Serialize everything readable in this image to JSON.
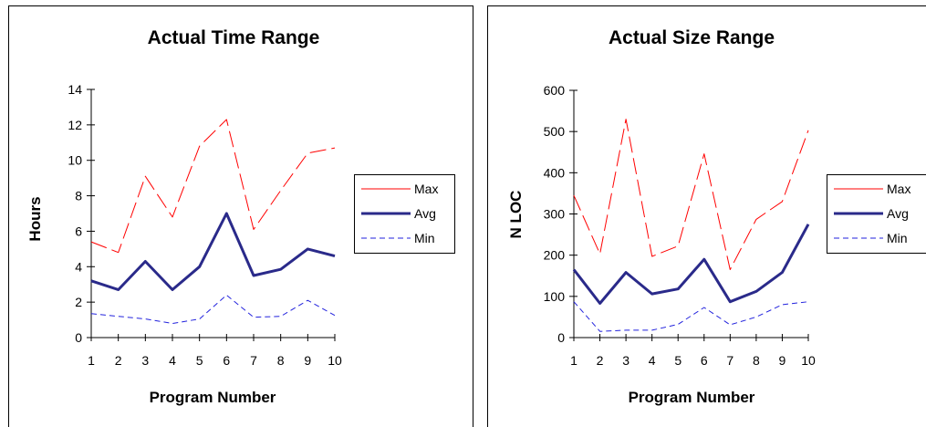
{
  "chart_data": [
    {
      "type": "line",
      "title": "Actual Time Range",
      "xlabel": "Program Number",
      "ylabel": "Hours",
      "x": [
        1,
        2,
        3,
        4,
        5,
        6,
        7,
        8,
        9,
        10
      ],
      "ylim": [
        0,
        14
      ],
      "yticks": [
        0,
        2,
        4,
        6,
        8,
        10,
        12,
        14
      ],
      "legend_position": "right",
      "series": [
        {
          "name": "Max",
          "color": "#ff0000",
          "style": "long-dash",
          "values": [
            5.4,
            4.8,
            9.1,
            6.8,
            10.8,
            12.3,
            6.1,
            8.3,
            10.4,
            10.7
          ]
        },
        {
          "name": "Avg",
          "color": "#2a2a8a",
          "style": "solid-thick",
          "values": [
            3.2,
            2.7,
            4.3,
            2.7,
            4.0,
            7.0,
            3.5,
            3.85,
            5.0,
            4.6
          ]
        },
        {
          "name": "Min",
          "color": "#2222dd",
          "style": "short-dash",
          "values": [
            1.35,
            1.2,
            1.05,
            0.8,
            1.05,
            2.4,
            1.15,
            1.2,
            2.1,
            1.25
          ]
        }
      ]
    },
    {
      "type": "line",
      "title": "Actual Size Range",
      "xlabel": "Program Number",
      "ylabel": "N LOC",
      "x": [
        1,
        2,
        3,
        4,
        5,
        6,
        7,
        8,
        9,
        10
      ],
      "ylim": [
        0,
        600
      ],
      "yticks": [
        0,
        100,
        200,
        300,
        400,
        500,
        600
      ],
      "legend_position": "right",
      "series": [
        {
          "name": "Max",
          "color": "#ff0000",
          "style": "long-dash",
          "values": [
            345,
            203,
            530,
            197,
            222,
            446,
            165,
            287,
            330,
            503
          ]
        },
        {
          "name": "Avg",
          "color": "#2a2a8a",
          "style": "solid-thick",
          "values": [
            165,
            83,
            158,
            106,
            118,
            190,
            87,
            112,
            158,
            275
          ]
        },
        {
          "name": "Min",
          "color": "#2222dd",
          "style": "short-dash",
          "values": [
            87,
            15,
            18,
            18,
            32,
            73,
            31,
            50,
            80,
            87
          ]
        }
      ]
    }
  ]
}
